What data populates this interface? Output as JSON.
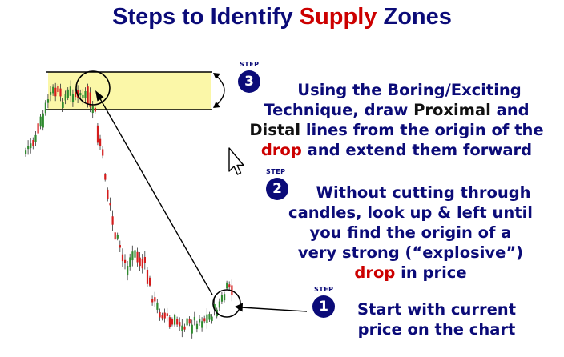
{
  "title": {
    "prefix": "Steps to Identify ",
    "highlight": "Supply",
    "suffix": " Zones"
  },
  "colors": {
    "navy": "#0b0b78",
    "red": "#cc0000",
    "zone": "#fbf7a8"
  },
  "step_label": "STEP",
  "steps": [
    {
      "number": "1",
      "lines": [
        "Start with current",
        "price on the chart"
      ]
    },
    {
      "number": "2",
      "line1": "Without cutting through",
      "line2": "candles, look up & left until",
      "line3": "you find the origin of a",
      "line4_strong": "very strong",
      "line4_rest": " (“explosive”)",
      "line5_red": "drop",
      "line5_rest": " in price"
    },
    {
      "number": "3",
      "line1": "Using the Boring/Exciting",
      "line2_a": "Technique, draw ",
      "line2_b": "Proximal",
      "line2_c": " and",
      "line3_a": "Distal",
      "line3_b": " lines from the origin of the",
      "line4_red": "drop",
      "line4_rest": " and extend them forward"
    }
  ],
  "icons": [
    "mouse-cursor-icon"
  ]
}
